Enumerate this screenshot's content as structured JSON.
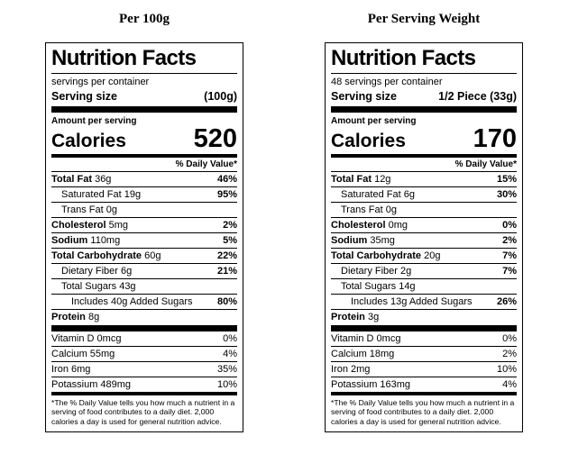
{
  "colors": {
    "text": "#000000",
    "background": "#ffffff",
    "rule": "#000000"
  },
  "labels": [
    {
      "heading": "Per 100g",
      "title": "Nutrition Facts",
      "servings_line": "servings per container",
      "serving_size_label": "Serving size",
      "serving_size_value": "(100g)",
      "amount_per_serving_label": "Amount per serving",
      "calories_label": "Calories",
      "calories_value": "520",
      "daily_value_header": "% Daily Value*",
      "nutrient_rows": [
        {
          "name_bold": "Total Fat",
          "name_rest": " 36g",
          "dv": "46%",
          "indent": 0
        },
        {
          "name_bold": "",
          "name_rest": "Saturated Fat 19g",
          "dv": "95%",
          "indent": 1
        },
        {
          "name_bold": "",
          "name_rest": "Trans Fat 0g",
          "dv": "",
          "indent": 1
        },
        {
          "name_bold": "Cholesterol",
          "name_rest": " 5mg",
          "dv": "2%",
          "indent": 0
        },
        {
          "name_bold": "Sodium",
          "name_rest": " 110mg",
          "dv": "5%",
          "indent": 0
        },
        {
          "name_bold": "Total Carbohydrate",
          "name_rest": " 60g",
          "dv": "22%",
          "indent": 0
        },
        {
          "name_bold": "",
          "name_rest": "Dietary Fiber 6g",
          "dv": "21%",
          "indent": 1
        },
        {
          "name_bold": "",
          "name_rest": "Total Sugars 43g",
          "dv": "",
          "indent": 1
        },
        {
          "name_bold": "",
          "name_rest": "Includes 40g Added Sugars",
          "dv": "80%",
          "indent": 2
        },
        {
          "name_bold": "Protein",
          "name_rest": " 8g",
          "dv": "",
          "indent": 0
        }
      ],
      "vitamin_rows": [
        {
          "name_bold": "",
          "name_rest": "Vitamin D 0mcg",
          "dv": "0%",
          "indent": 0
        },
        {
          "name_bold": "",
          "name_rest": "Calcium 55mg",
          "dv": "4%",
          "indent": 0
        },
        {
          "name_bold": "",
          "name_rest": "Iron 6mg",
          "dv": "35%",
          "indent": 0
        },
        {
          "name_bold": "",
          "name_rest": "Potassium 489mg",
          "dv": "10%",
          "indent": 0
        }
      ],
      "footnote": "*The % Daily Value tells you how much a nutrient in a serving of food contributes to a daily diet. 2,000 calories a day is used for general nutrition advice."
    },
    {
      "heading": "Per Serving Weight",
      "title": "Nutrition Facts",
      "servings_line": "48 servings per container",
      "serving_size_label": "Serving size",
      "serving_size_value": "1/2 Piece (33g)",
      "amount_per_serving_label": "Amount per serving",
      "calories_label": "Calories",
      "calories_value": "170",
      "daily_value_header": "% Daily Value*",
      "nutrient_rows": [
        {
          "name_bold": "Total Fat",
          "name_rest": " 12g",
          "dv": "15%",
          "indent": 0
        },
        {
          "name_bold": "",
          "name_rest": "Saturated Fat 6g",
          "dv": "30%",
          "indent": 1
        },
        {
          "name_bold": "",
          "name_rest": "Trans Fat 0g",
          "dv": "",
          "indent": 1
        },
        {
          "name_bold": "Cholesterol",
          "name_rest": " 0mg",
          "dv": "0%",
          "indent": 0
        },
        {
          "name_bold": "Sodium",
          "name_rest": " 35mg",
          "dv": "2%",
          "indent": 0
        },
        {
          "name_bold": "Total Carbohydrate",
          "name_rest": " 20g",
          "dv": "7%",
          "indent": 0
        },
        {
          "name_bold": "",
          "name_rest": "Dietary Fiber 2g",
          "dv": "7%",
          "indent": 1
        },
        {
          "name_bold": "",
          "name_rest": "Total Sugars 14g",
          "dv": "",
          "indent": 1
        },
        {
          "name_bold": "",
          "name_rest": "Includes 13g Added Sugars",
          "dv": "26%",
          "indent": 2
        },
        {
          "name_bold": "Protein",
          "name_rest": " 3g",
          "dv": "",
          "indent": 0
        }
      ],
      "vitamin_rows": [
        {
          "name_bold": "",
          "name_rest": "Vitamin D 0mcg",
          "dv": "0%",
          "indent": 0
        },
        {
          "name_bold": "",
          "name_rest": "Calcium 18mg",
          "dv": "2%",
          "indent": 0
        },
        {
          "name_bold": "",
          "name_rest": "Iron 2mg",
          "dv": "10%",
          "indent": 0
        },
        {
          "name_bold": "",
          "name_rest": "Potassium 163mg",
          "dv": "4%",
          "indent": 0
        }
      ],
      "footnote": "*The % Daily Value tells you how much a nutrient in a serving of food contributes to a daily diet. 2,000 calories a day is used for general nutrition advice."
    }
  ]
}
